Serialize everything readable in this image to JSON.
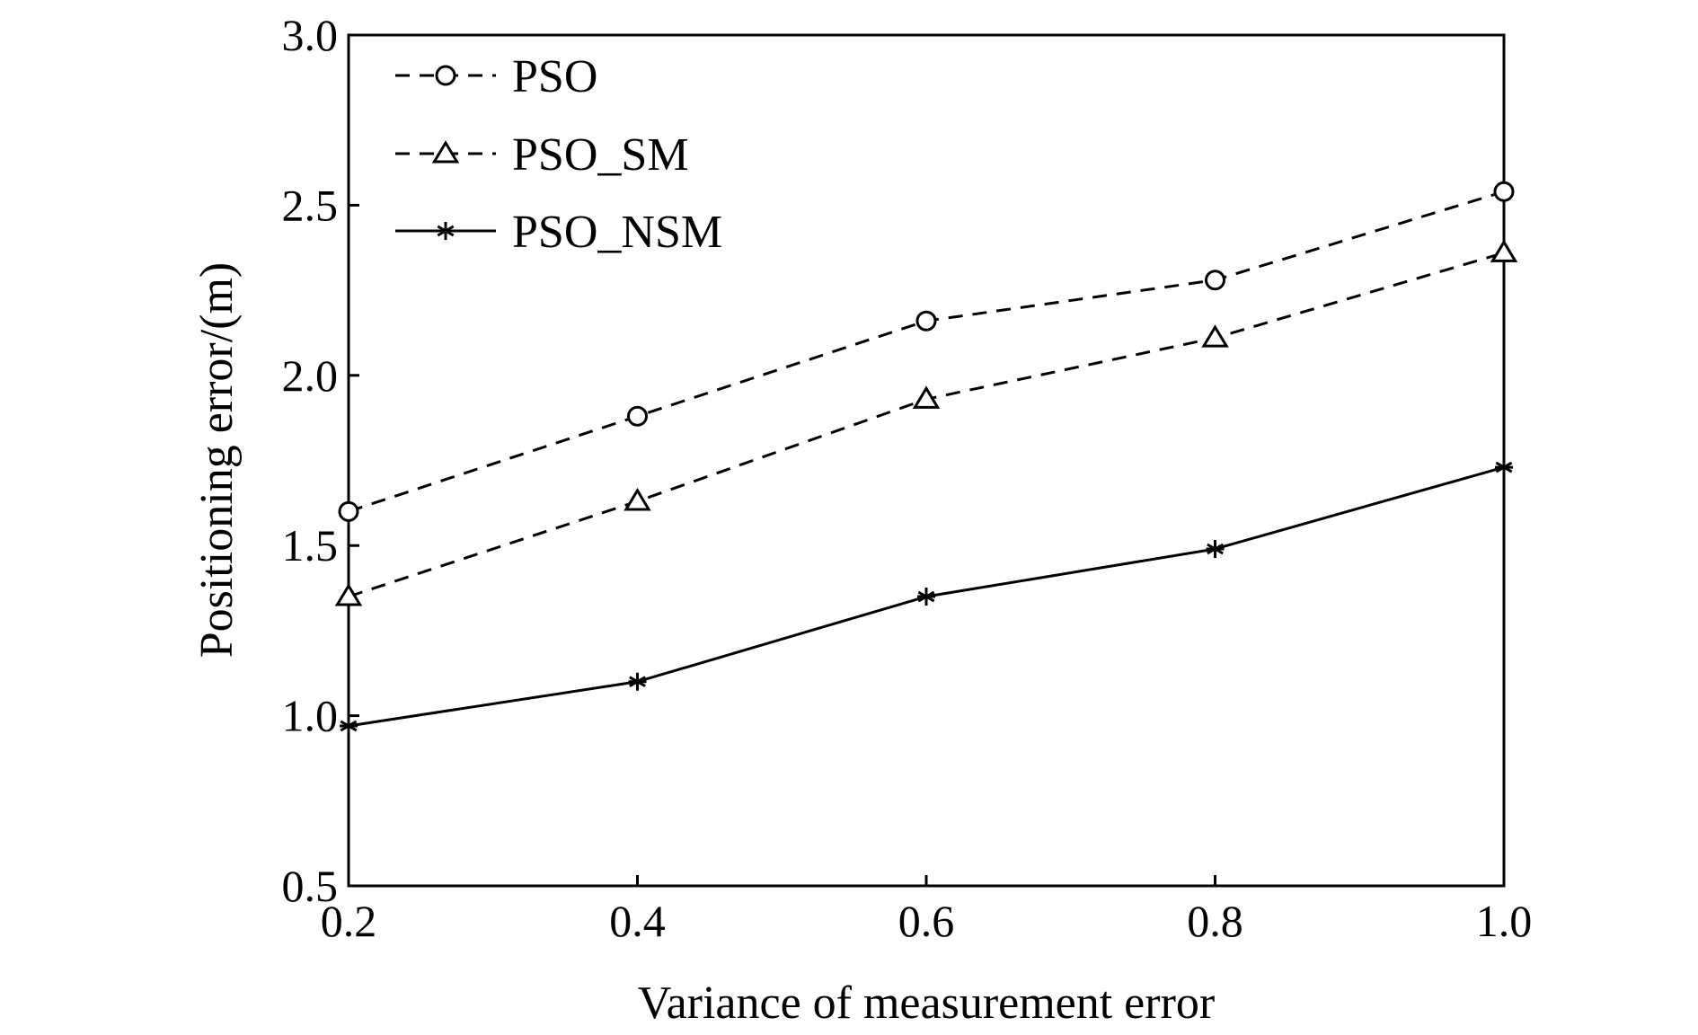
{
  "chart_data": {
    "type": "line",
    "title": "",
    "xlabel": "Variance of measurement error",
    "ylabel": "Positioning error/(m)",
    "x": [
      0.2,
      0.4,
      0.6,
      0.8,
      1.0
    ],
    "x_tick_labels": [
      "0.2",
      "0.4",
      "0.6",
      "0.8",
      "1.0"
    ],
    "y_tick_labels": [
      "0.5",
      "1.0",
      "1.5",
      "2.0",
      "2.5",
      "3.0"
    ],
    "xlim": [
      0.2,
      1.0
    ],
    "ylim": [
      0.5,
      3.0
    ],
    "grid": false,
    "legend_position": "top-left",
    "series": [
      {
        "name": "PSO",
        "values": [
          1.6,
          1.88,
          2.16,
          2.28,
          2.54
        ],
        "line_style": "dashed",
        "marker": "circle",
        "color": "#000000"
      },
      {
        "name": "PSO_SM",
        "values": [
          1.35,
          1.63,
          1.93,
          2.11,
          2.36
        ],
        "line_style": "dashed",
        "marker": "triangle",
        "color": "#000000"
      },
      {
        "name": "PSO_NSM",
        "values": [
          0.97,
          1.1,
          1.35,
          1.49,
          1.73
        ],
        "line_style": "solid",
        "marker": "asterisk",
        "color": "#000000"
      }
    ]
  }
}
